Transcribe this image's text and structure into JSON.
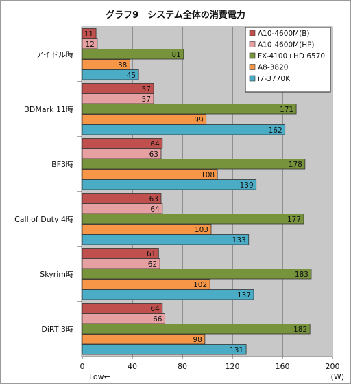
{
  "chart_data": {
    "type": "bar",
    "orientation": "horizontal",
    "title": "グラフ9　システム全体の消費電力",
    "categories": [
      "アイドル時",
      "3DMark 11時",
      "BF3時",
      "Call of Duty 4時",
      "Skyrim時",
      "DiRT 3時"
    ],
    "series": [
      {
        "name": "A10-4600M(B)",
        "color": "#c0504d",
        "values": [
          11,
          57,
          64,
          63,
          61,
          64
        ]
      },
      {
        "name": "A10-4600M(HP)",
        "color": "#e6a0a2",
        "values": [
          12,
          57,
          63,
          64,
          62,
          66
        ]
      },
      {
        "name": "FX-4100+HD 6570",
        "color": "#77933c",
        "values": [
          81,
          171,
          178,
          177,
          183,
          182
        ]
      },
      {
        "name": "A8-3820",
        "color": "#f79646",
        "values": [
          38,
          99,
          108,
          103,
          102,
          98
        ]
      },
      {
        "name": "i7-3770K",
        "color": "#4bacc6",
        "values": [
          45,
          162,
          139,
          133,
          137,
          131
        ]
      }
    ],
    "xlim": [
      0,
      200
    ],
    "xticks": [
      0,
      40,
      80,
      120,
      160,
      200
    ],
    "xunit": "(W)",
    "xnote": "Low←",
    "grid": true,
    "legend_position": "top-right"
  }
}
